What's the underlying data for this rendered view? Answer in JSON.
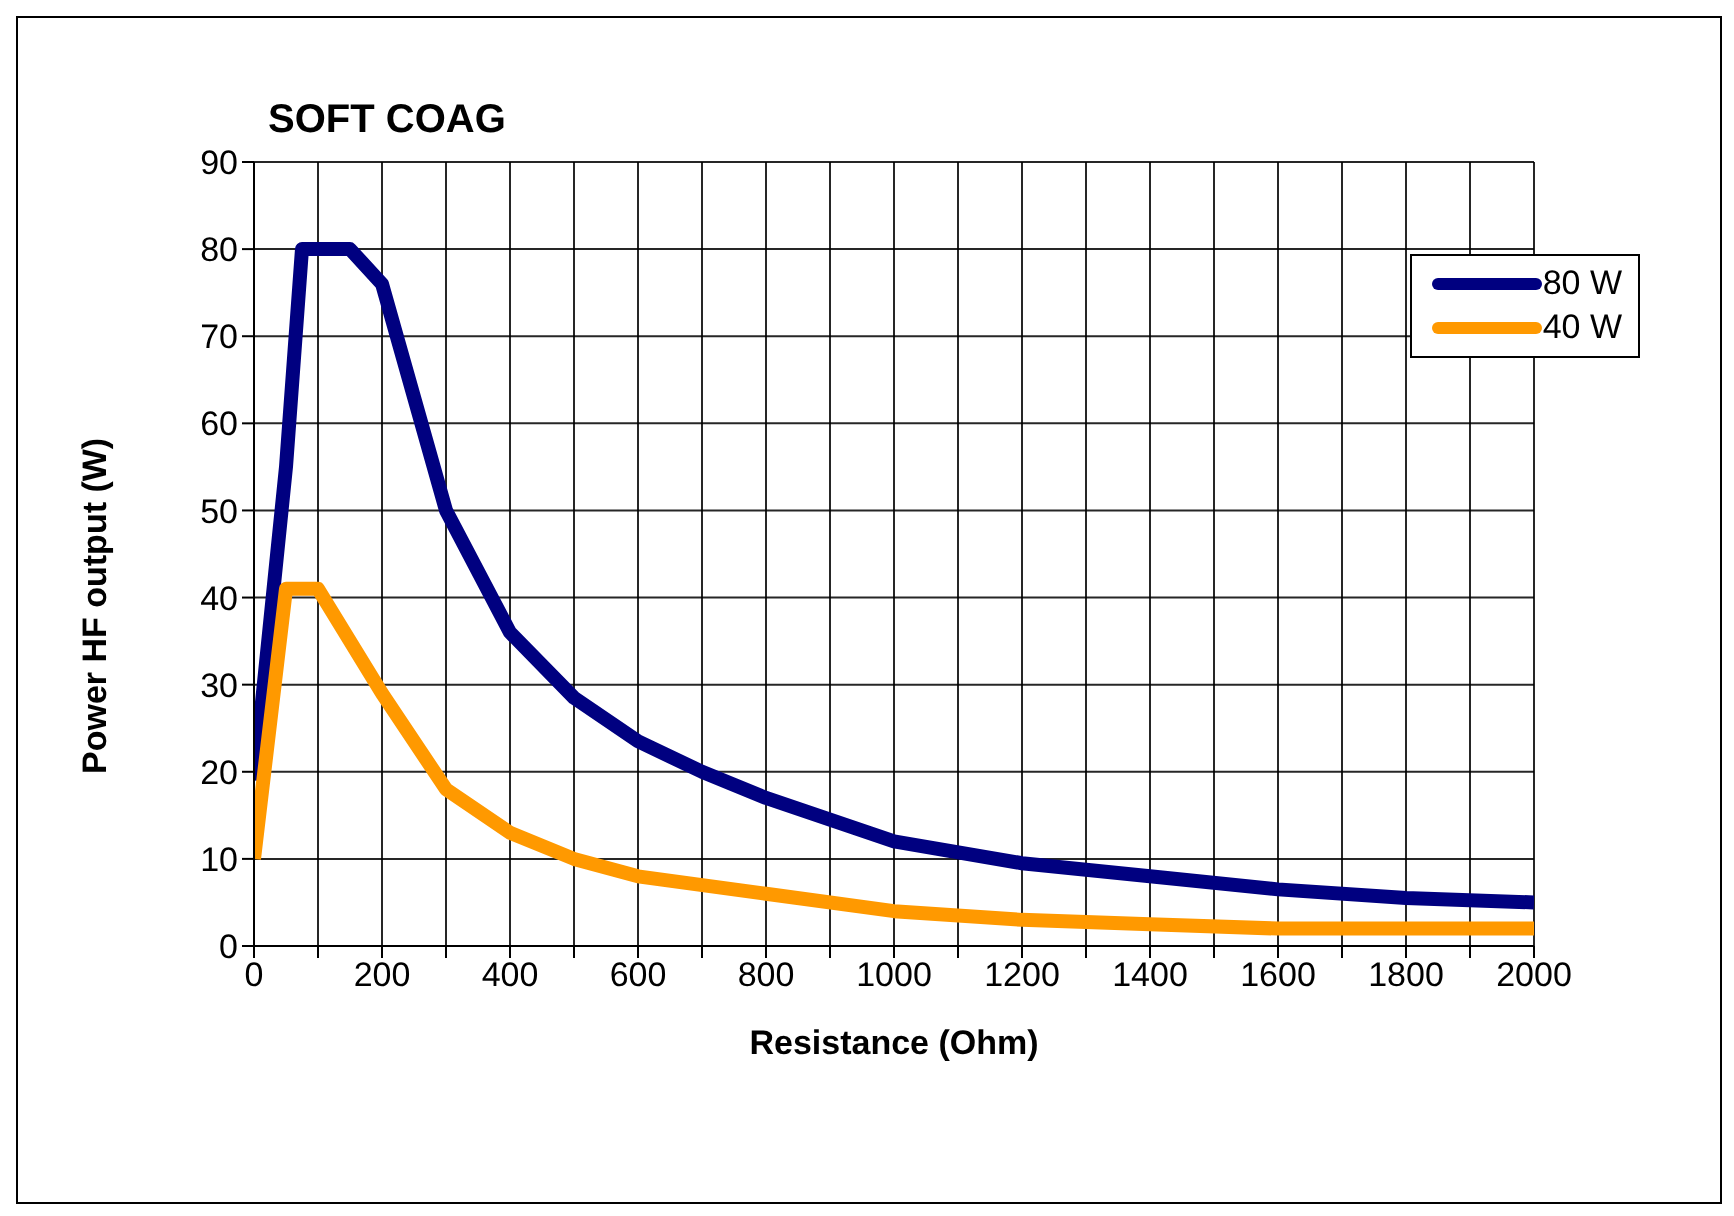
{
  "chart_data": {
    "type": "line",
    "title": "SOFT COAG",
    "xlabel": "Resistance (Ohm)",
    "ylabel": "Power HF output (W)",
    "xlim": [
      0,
      2000
    ],
    "ylim": [
      0,
      90
    ],
    "xticks": [
      0,
      {
        "value": 100,
        "label": null
      },
      200,
      {
        "value": 300,
        "label": null
      },
      400,
      {
        "value": 500,
        "label": null
      },
      600,
      {
        "value": 700,
        "label": null
      },
      800,
      {
        "value": 900,
        "label": null
      },
      1000,
      {
        "value": 1100,
        "label": null
      },
      1200,
      {
        "value": 1300,
        "label": null
      },
      1400,
      {
        "value": 1500,
        "label": null
      },
      1600,
      {
        "value": 1700,
        "label": null
      },
      1800,
      {
        "value": 1900,
        "label": null
      },
      2000
    ],
    "yticks": [
      0,
      10,
      20,
      30,
      40,
      50,
      60,
      70,
      80,
      90
    ],
    "grid": true,
    "legend": "top right",
    "marker": "none",
    "line_style": "solid",
    "series": [
      {
        "name": "80 W",
        "color": "#000080",
        "x": [
          0,
          50,
          75,
          150,
          200,
          300,
          400,
          500,
          600,
          700,
          800,
          900,
          1000,
          1200,
          1400,
          1600,
          1800,
          2000
        ],
        "values": [
          19,
          55,
          80,
          80,
          76,
          50,
          36,
          28.5,
          23.5,
          20,
          17,
          14.5,
          12,
          9.5,
          8,
          6.5,
          5.5,
          5
        ]
      },
      {
        "name": "40 W",
        "color": "#ff9900",
        "x": [
          0,
          50,
          100,
          200,
          300,
          400,
          500,
          600,
          800,
          1000,
          1200,
          1400,
          1600,
          2000
        ],
        "values": [
          10,
          41,
          41,
          29,
          18,
          13,
          10,
          8,
          6,
          4,
          3,
          2.5,
          2,
          2
        ]
      }
    ]
  }
}
